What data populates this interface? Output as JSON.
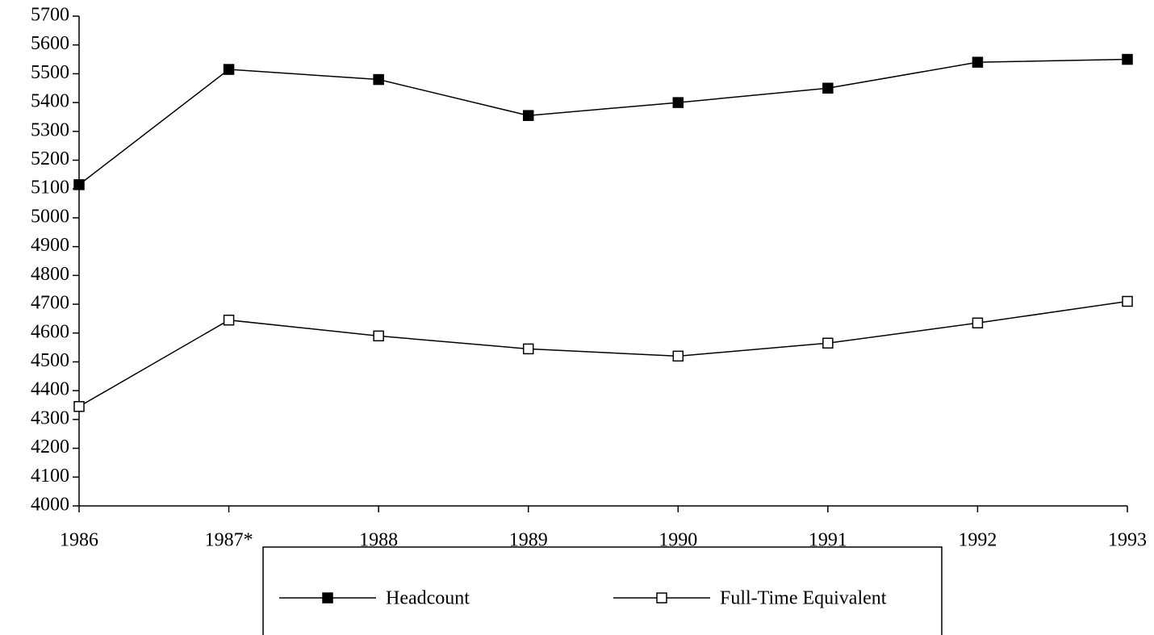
{
  "chart_data": {
    "type": "line",
    "categories": [
      "1986",
      "1987*",
      "1988",
      "1989",
      "1990",
      "1991",
      "1992",
      "1993"
    ],
    "series": [
      {
        "name": "Headcount",
        "color": "#000000",
        "marker": "filled-square",
        "values": [
          5115,
          5515,
          5480,
          5355,
          5400,
          5450,
          5540,
          5550
        ]
      },
      {
        "name": "Full-Time Equivalent",
        "color": "#000000",
        "marker": "open-square",
        "values": [
          4345,
          4645,
          4590,
          4545,
          4520,
          4565,
          4635,
          4710
        ]
      }
    ],
    "ylim": [
      4000,
      5700
    ],
    "yticks": [
      4000,
      4100,
      4200,
      4300,
      4400,
      4500,
      4600,
      4700,
      4800,
      4900,
      5000,
      5100,
      5200,
      5300,
      5400,
      5500,
      5600,
      5700
    ],
    "grid": false,
    "legend": "bottom"
  }
}
